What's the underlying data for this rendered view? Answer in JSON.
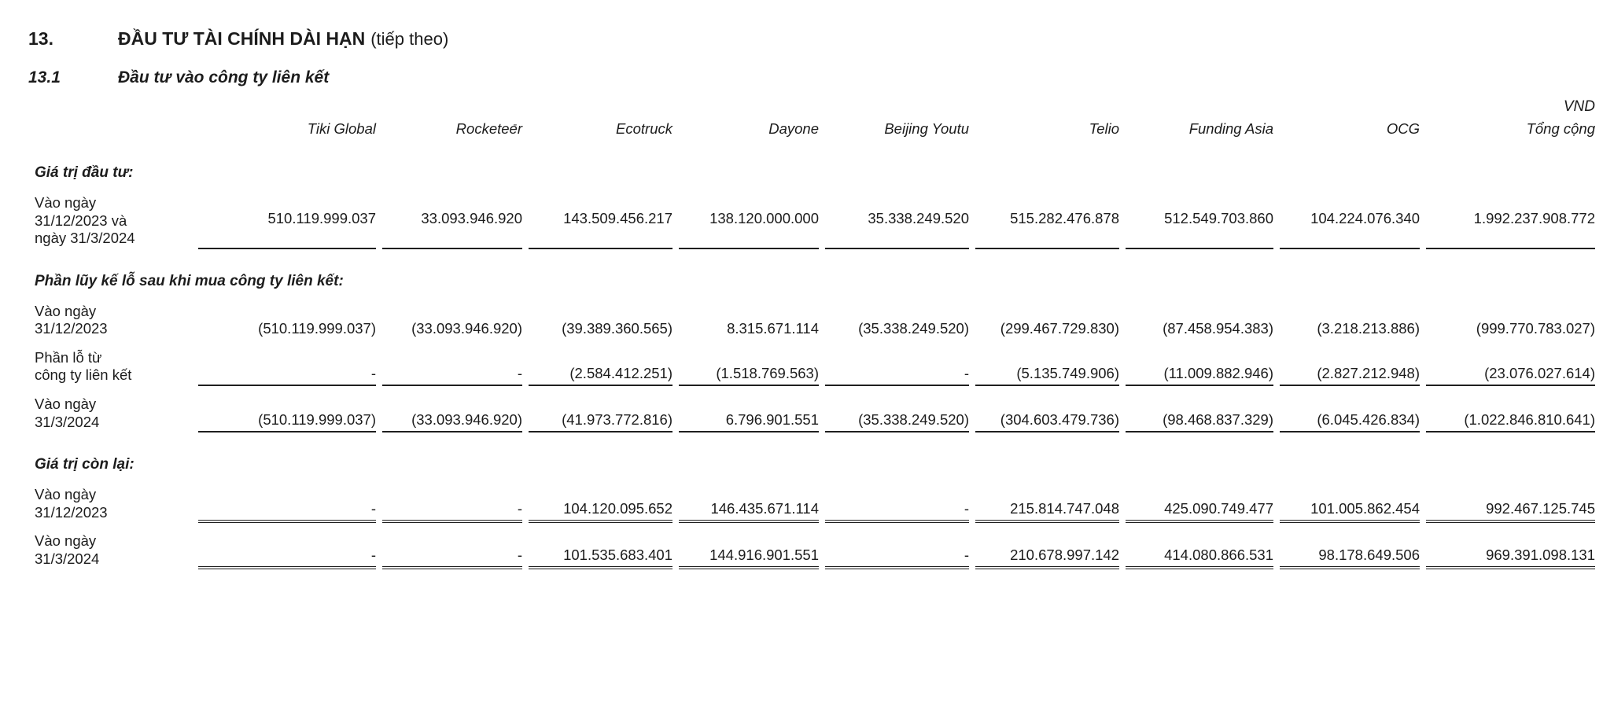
{
  "page": {
    "section_number": "13.",
    "section_title": "ĐẦU TƯ TÀI CHÍNH DÀI HẠN",
    "section_suffix": "(tiếp theo)",
    "subsection_number": "13.1",
    "subsection_title": "Đầu tư vào công ty liên kết",
    "currency_label": "VND",
    "stray_mark": "-"
  },
  "table": {
    "column_headers": [
      "Tiki Global",
      "Rocketeer",
      "Ecotruck",
      "Dayone",
      "Beijing Youtu",
      "Telio",
      "Funding Asia",
      "OCG",
      "Tổng cộng"
    ],
    "rows": [
      {
        "type": "section",
        "label": "Giá trị đầu tư:"
      },
      {
        "type": "data",
        "underline": "single",
        "label": "Vào ngày\n31/12/2023 và\nngày 31/3/2024",
        "values": [
          "510.119.999.037",
          "33.093.946.920",
          "143.509.456.217",
          "138.120.000.000",
          "35.338.249.520",
          "515.282.476.878",
          "512.549.703.860",
          "104.224.076.340",
          "1.992.237.908.772"
        ]
      },
      {
        "type": "section",
        "label": "Phần lũy kế lỗ sau khi mua công ty liên kết:"
      },
      {
        "type": "data",
        "underline": "none",
        "label": "Vào ngày\n31/12/2023",
        "values": [
          "(510.119.999.037)",
          "(33.093.946.920)",
          "(39.389.360.565)",
          "8.315.671.114",
          "(35.338.249.520)",
          "(299.467.729.830)",
          "(87.458.954.383)",
          "(3.218.213.886)",
          "(999.770.783.027)"
        ]
      },
      {
        "type": "data",
        "underline": "single",
        "label": "Phần lỗ từ\ncông ty liên kết",
        "values": [
          "-",
          "-",
          "(2.584.412.251)",
          "(1.518.769.563)",
          "-",
          "(5.135.749.906)",
          "(11.009.882.946)",
          "(2.827.212.948)",
          "(23.076.027.614)"
        ]
      },
      {
        "type": "data",
        "underline": "single",
        "label": "Vào ngày\n31/3/2024",
        "values": [
          "(510.119.999.037)",
          "(33.093.946.920)",
          "(41.973.772.816)",
          "6.796.901.551",
          "(35.338.249.520)",
          "(304.603.479.736)",
          "(98.468.837.329)",
          "(6.045.426.834)",
          "(1.022.846.810.641)"
        ]
      },
      {
        "type": "section",
        "label": "Giá trị còn lại:"
      },
      {
        "type": "data",
        "underline": "double",
        "label": "Vào ngày\n31/12/2023",
        "values": [
          "-",
          "-",
          "104.120.095.652",
          "146.435.671.114",
          "-",
          "215.814.747.048",
          "425.090.749.477",
          "101.005.862.454",
          "992.467.125.745"
        ]
      },
      {
        "type": "data",
        "underline": "double",
        "label": "Vào ngày\n31/3/2024",
        "values": [
          "-",
          "-",
          "101.535.683.401",
          "144.916.901.551",
          "-",
          "210.678.997.142",
          "414.080.866.531",
          "98.178.649.506",
          "969.391.098.131"
        ]
      }
    ]
  }
}
